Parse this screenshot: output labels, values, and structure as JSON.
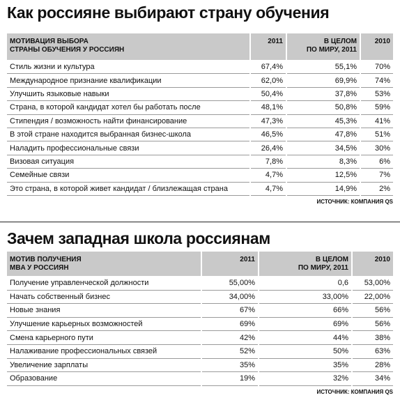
{
  "tables": [
    {
      "title": "Как россияне выбирают страну обучения",
      "headers": [
        "МОТИВАЦИЯ ВЫБОРА\nСТРАНЫ ОБУЧЕНИЯ У РОССИЯН",
        "2011",
        "В ЦЕЛОМ\nПО МИРУ, 2011",
        "2010"
      ],
      "rows": [
        [
          "Стиль жизни и культура",
          "67,4%",
          "55,1%",
          "70%"
        ],
        [
          "Международное признание квалификации",
          "62,0%",
          "69,9%",
          "74%"
        ],
        [
          "Улучшить языковые навыки",
          "50,4%",
          "37,8%",
          "53%"
        ],
        [
          "Страна, в которой кандидат хотел бы работать после",
          "48,1%",
          "50,8%",
          "59%"
        ],
        [
          "Стипендия / возможность найти финансирование",
          "47,3%",
          "45,3%",
          "41%"
        ],
        [
          "В этой стране находится выбранная бизнес-школа",
          "46,5%",
          "47,8%",
          "51%"
        ],
        [
          "Наладить профессиональные связи",
          "26,4%",
          "34,5%",
          "30%"
        ],
        [
          "Визовая ситуация",
          "7,8%",
          "8,3%",
          "6%"
        ],
        [
          "Семейные связи",
          "4,7%",
          "12,5%",
          "7%"
        ],
        [
          "Это страна, в которой живет кандидат / близлежащая страна",
          "4,7%",
          "14,9%",
          "2%"
        ]
      ],
      "source": "ИСТОЧНИК: КОМПАНИЯ QS"
    },
    {
      "title": "Зачем западная школа россиянам",
      "headers": [
        "МОТИВ ПОЛУЧЕНИЯ\nMBA У РОССИЯН",
        "2011",
        "В ЦЕЛОМ\nПО МИРУ, 2011",
        "2010"
      ],
      "rows": [
        [
          "Получение управленческой должности",
          "55,00%",
          "0,6",
          "53,00%"
        ],
        [
          "Начать собственный бизнес",
          "34,00%",
          "33,00%",
          "22,00%"
        ],
        [
          "Новые знания",
          "67%",
          "66%",
          "56%"
        ],
        [
          "Улучшение карьерных возможностей",
          "69%",
          "69%",
          "56%"
        ],
        [
          "Смена карьерного пути",
          "42%",
          "44%",
          "38%"
        ],
        [
          "Налаживание профессиональных связей",
          "52%",
          "50%",
          "63%"
        ],
        [
          "Увеличение зарплаты",
          "35%",
          "35%",
          "28%"
        ],
        [
          "Образование",
          "19%",
          "32%",
          "34%"
        ]
      ],
      "source": "ИСТОЧНИК: КОМПАНИЯ QS"
    }
  ]
}
